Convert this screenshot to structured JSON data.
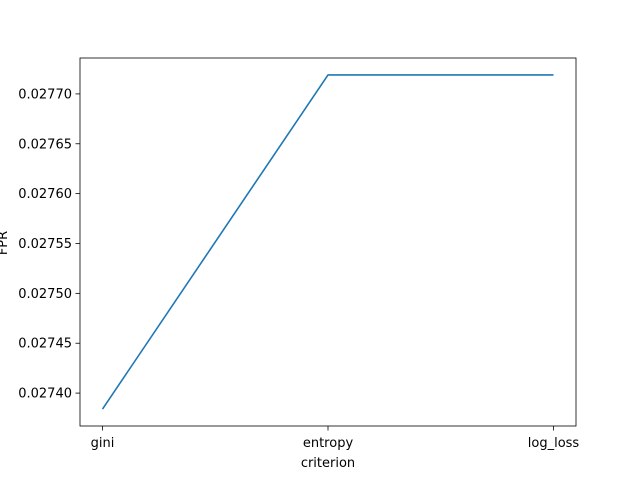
{
  "chart_data": {
    "type": "line",
    "categories": [
      "gini",
      "entropy",
      "log_loss"
    ],
    "series": [
      {
        "values": [
          0.027384,
          0.027719,
          0.027719
        ],
        "color": "#1f77b4"
      }
    ],
    "title": "",
    "xlabel": "criterion",
    "ylabel": "FPR",
    "ylim": [
      0.027367,
      0.027736
    ],
    "yticks": [
      0.0274,
      0.02745,
      0.0275,
      0.02755,
      0.0276,
      0.02765,
      0.0277
    ],
    "ytick_labels": [
      "0.02740",
      "0.02745",
      "0.02750",
      "0.02755",
      "0.02760",
      "0.02765",
      "0.02770"
    ],
    "grid": false,
    "legend": "none"
  }
}
